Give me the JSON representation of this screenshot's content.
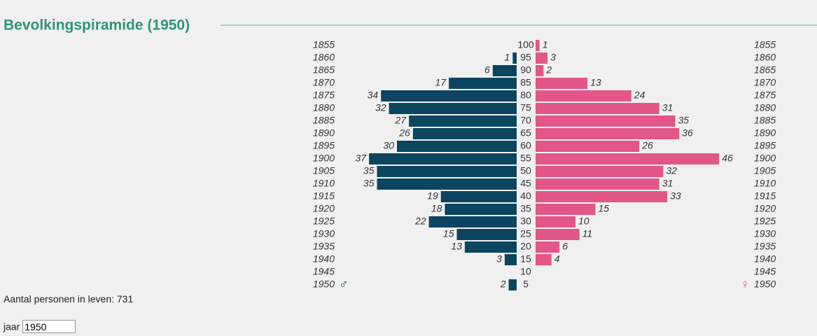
{
  "chart_data": {
    "type": "pyramid",
    "title": "Bevolkingspiramide (1950)",
    "categories": [
      100,
      95,
      90,
      85,
      80,
      75,
      70,
      65,
      60,
      55,
      50,
      45,
      40,
      35,
      30,
      25,
      20,
      15,
      10,
      5
    ],
    "birth_years": [
      1855,
      1860,
      1865,
      1870,
      1875,
      1880,
      1885,
      1890,
      1895,
      1900,
      1905,
      1910,
      1915,
      1920,
      1925,
      1930,
      1935,
      1940,
      1945,
      1950
    ],
    "series": [
      {
        "name": "♂",
        "color": "#0c4560",
        "values": [
          null,
          1,
          6,
          17,
          34,
          32,
          27,
          26,
          30,
          37,
          35,
          35,
          19,
          18,
          22,
          15,
          13,
          3,
          null,
          2
        ]
      },
      {
        "name": "♀",
        "color": "#e35688",
        "values": [
          1,
          3,
          2,
          13,
          24,
          31,
          35,
          36,
          26,
          46,
          32,
          31,
          33,
          15,
          10,
          11,
          6,
          4,
          null,
          null
        ]
      }
    ]
  },
  "summary": {
    "label": "Aantal personen in leven:",
    "total": 731
  },
  "form": {
    "label": "jaar",
    "value": "1950"
  }
}
